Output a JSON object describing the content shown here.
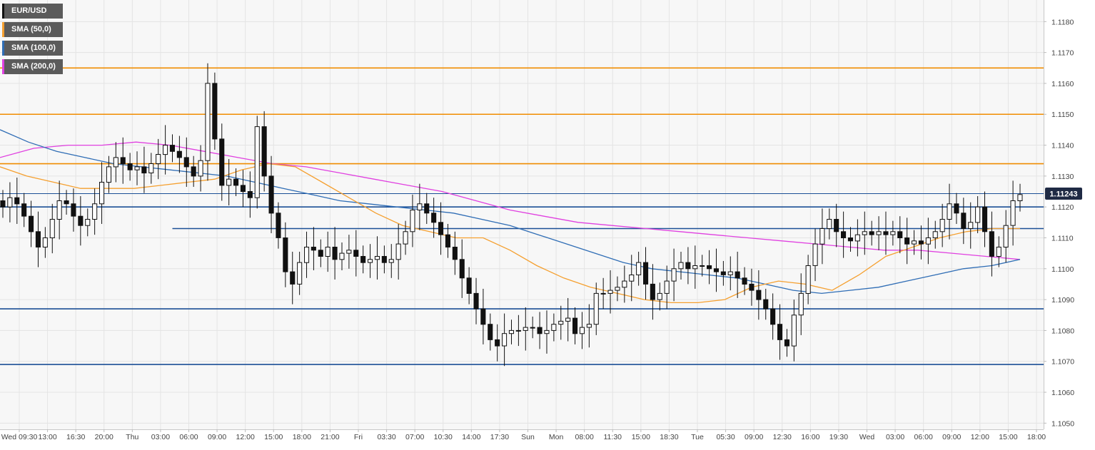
{
  "colors": {
    "background": "#f7f7f7",
    "grid": "#e4e4e4",
    "candle": "#111111",
    "resistance": "#f08c00",
    "support": "#1b4f96",
    "sma50": "#f5a030",
    "sma100": "#2f6db5",
    "sma200": "#e040e0",
    "price_label_bg": "#1f2a44"
  },
  "legend": [
    {
      "label": "EUR/USD",
      "color": "#111111"
    },
    {
      "label": "SMA (50,0)",
      "color": "#f5a030"
    },
    {
      "label": "SMA (100,0)",
      "color": "#2f6db5"
    },
    {
      "label": "SMA (200,0)",
      "color": "#e040e0"
    }
  ],
  "chart_data": {
    "type": "candlestick",
    "symbol": "EUR/USD",
    "ylim": [
      1.1048,
      1.1187
    ],
    "yticks": [
      "1.1050",
      "1.1060",
      "1.1070",
      "1.1080",
      "1.1090",
      "1.1100",
      "1.1110",
      "1.1120",
      "1.1130",
      "1.1140",
      "1.1150",
      "1.1160",
      "1.1170",
      "1.1180"
    ],
    "xticks": [
      "Wed 09:30",
      "13:00",
      "16:30",
      "20:00",
      "Thu",
      "03:00",
      "06:00",
      "09:00",
      "12:00",
      "15:00",
      "18:00",
      "21:00",
      "Fri",
      "03:30",
      "07:00",
      "10:30",
      "14:00",
      "17:30",
      "Sun",
      "Mon",
      "08:00",
      "11:30",
      "15:00",
      "18:30",
      "Tue",
      "05:30",
      "09:00",
      "12:30",
      "16:00",
      "19:30",
      "Wed",
      "03:00",
      "06:00",
      "09:00",
      "12:00",
      "15:00",
      "18:00"
    ],
    "current_price": "1.11243",
    "resistance_levels": [
      1.1165,
      1.115,
      1.1134
    ],
    "support_levels": [
      1.112,
      1.1113,
      1.1087,
      1.1069
    ],
    "support_113_start_index": 27,
    "prices": [
      1.112,
      1.1123,
      1.1121,
      1.1117,
      1.1112,
      1.1107,
      1.111,
      1.1116,
      1.1122,
      1.1121,
      1.1117,
      1.1114,
      1.1116,
      1.1121,
      1.1128,
      1.1133,
      1.1136,
      1.1134,
      1.1132,
      1.1133,
      1.1131,
      1.1134,
      1.1137,
      1.114,
      1.1138,
      1.1136,
      1.1133,
      1.113,
      1.1135,
      1.116,
      1.1142,
      1.1127,
      1.1129,
      1.1127,
      1.1125,
      1.1123,
      1.1146,
      1.113,
      1.1118,
      1.111,
      1.1099,
      1.1095,
      1.1102,
      1.1107,
      1.1106,
      1.1104,
      1.1107,
      1.1103,
      1.1105,
      1.1106,
      1.1104,
      1.1102,
      1.1103,
      1.1104,
      1.1102,
      1.1103,
      1.1108,
      1.1112,
      1.1119,
      1.1121,
      1.1118,
      1.1115,
      1.1111,
      1.1107,
      1.1103,
      1.1097,
      1.1092,
      1.1087,
      1.1082,
      1.1077,
      1.1075,
      1.1079,
      1.108,
      1.108,
      1.1081,
      1.1081,
      1.1079,
      1.108,
      1.1082,
      1.1083,
      1.1084,
      1.1079,
      1.1081,
      1.1082,
      1.1092,
      1.1092,
      1.1093,
      1.1094,
      1.1096,
      1.1098,
      1.1102,
      1.1095,
      1.109,
      1.1092,
      1.1096,
      1.11,
      1.1102,
      1.11,
      1.1101,
      1.1101,
      1.11,
      1.1099,
      1.1098,
      1.1099,
      1.1097,
      1.1095,
      1.1093,
      1.109,
      1.1087,
      1.1082,
      1.1077,
      1.1075,
      1.1085,
      1.1092,
      1.1101,
      1.1108,
      1.1113,
      1.1116,
      1.1112,
      1.111,
      1.1109,
      1.1111,
      1.1112,
      1.1111,
      1.1112,
      1.1111,
      1.1112,
      1.111,
      1.1108,
      1.1109,
      1.1108,
      1.111,
      1.1112,
      1.1116,
      1.1121,
      1.1118,
      1.1113,
      1.1115,
      1.112,
      1.1112,
      1.1104,
      1.1107,
      1.1114,
      1.1122,
      1.1124
    ],
    "sma50": [
      1.1133,
      1.113,
      1.1128,
      1.1126,
      1.1126,
      1.1126,
      1.1127,
      1.1128,
      1.1129,
      1.1132,
      1.1134,
      1.1133,
      1.1128,
      1.1123,
      1.1118,
      1.1114,
      1.1112,
      1.111,
      1.111,
      1.1106,
      1.1101,
      1.1097,
      1.1094,
      1.1092,
      1.109,
      1.1089,
      1.1089,
      1.109,
      1.1094,
      1.1096,
      1.1095,
      1.1093,
      1.1098,
      1.1104,
      1.1107,
      1.111,
      1.1112,
      1.1113,
      1.1113
    ],
    "sma100": [
      1.1145,
      1.1141,
      1.1138,
      1.1136,
      1.1134,
      1.1133,
      1.1132,
      1.1131,
      1.113,
      1.1128,
      1.1126,
      1.1124,
      1.1122,
      1.1121,
      1.112,
      1.1119,
      1.1118,
      1.1116,
      1.1114,
      1.1111,
      1.1108,
      1.1105,
      1.1102,
      1.11,
      1.1099,
      1.1098,
      1.1097,
      1.1095,
      1.1093,
      1.1092,
      1.1093,
      1.1094,
      1.1096,
      1.1098,
      1.11,
      1.1101,
      1.1103
    ],
    "sma200": [
      1.1136,
      1.1139,
      1.114,
      1.114,
      1.1141,
      1.114,
      1.1138,
      1.1136,
      1.1134,
      1.1133,
      1.1131,
      1.1129,
      1.1127,
      1.1125,
      1.1122,
      1.1119,
      1.1117,
      1.1115,
      1.1114,
      1.1113,
      1.1112,
      1.1111,
      1.111,
      1.1109,
      1.1108,
      1.1107,
      1.1106,
      1.1106,
      1.1105,
      1.1104,
      1.1103
    ]
  }
}
